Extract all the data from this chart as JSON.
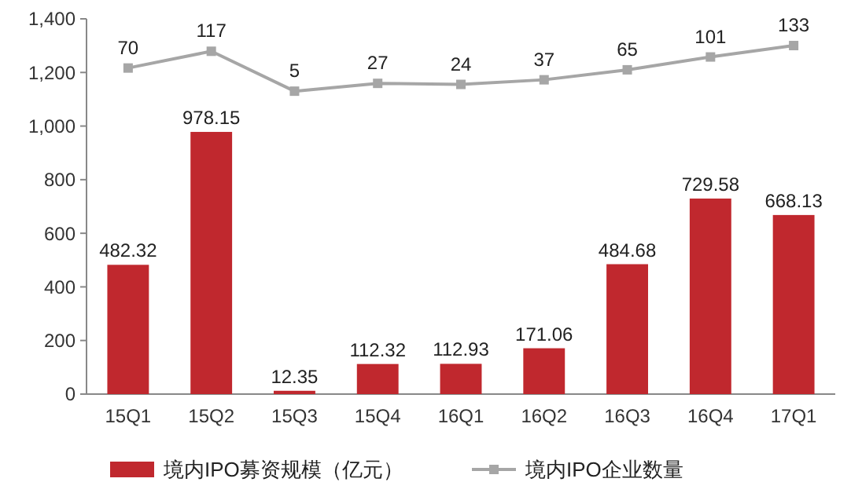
{
  "chart_data": {
    "type": "bar",
    "categories": [
      "15Q1",
      "15Q2",
      "15Q3",
      "15Q4",
      "16Q1",
      "16Q2",
      "16Q3",
      "16Q4",
      "17Q1"
    ],
    "series": [
      {
        "name": "境内IPO募资规模（亿元）",
        "color": "#c0282e",
        "values": [
          482.32,
          978.15,
          12.35,
          112.32,
          112.93,
          171.06,
          484.68,
          729.58,
          668.13
        ]
      },
      {
        "name": "境内IPO企业数量",
        "type": "line",
        "axis": "y2",
        "color": "#a6a6a6",
        "marker": "square",
        "values": [
          70,
          117,
          5,
          27,
          24,
          37,
          65,
          101,
          133
        ]
      }
    ],
    "ylim": [
      0,
      1400
    ],
    "yticks": [
      0,
      200,
      400,
      600,
      800,
      {
        "value": 1000,
        "label": "1,000"
      },
      {
        "value": 1200,
        "label": "1,200"
      },
      {
        "value": 1400,
        "label": "1,400"
      }
    ],
    "y2lim": [
      -845,
      208
    ],
    "data_labels": true,
    "legend": "bottom",
    "grid": false
  }
}
